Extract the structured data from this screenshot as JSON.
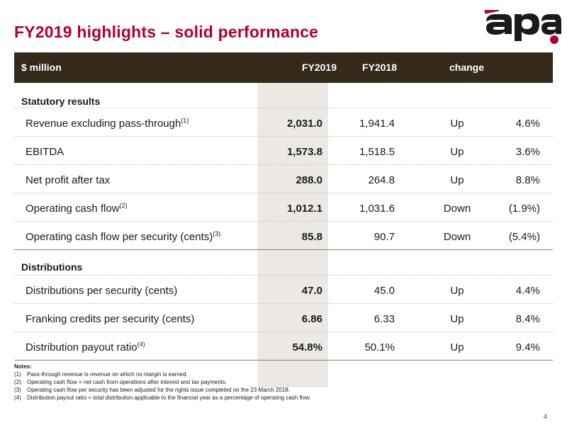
{
  "title": "FY2019 highlights – solid performance",
  "logo_text": "apa",
  "colors": {
    "title": "#b3002d",
    "header_bg": "#352a1a",
    "highlight_column": "#ece9e5"
  },
  "table": {
    "headers": {
      "label": "$ million",
      "fy2019": "FY2019",
      "fy2018": "FY2018",
      "change": "change"
    },
    "sections": [
      {
        "heading": "Statutory results",
        "rows": [
          {
            "label": "Revenue excluding pass-through",
            "note": "(1)",
            "fy2019": "2,031.0",
            "fy2018": "1,941.4",
            "direction": "Up",
            "pct": "4.6%"
          },
          {
            "label": "EBITDA",
            "note": "",
            "fy2019": "1,573.8",
            "fy2018": "1,518.5",
            "direction": "Up",
            "pct": "3.6%"
          },
          {
            "label": "Net profit after tax",
            "note": "",
            "fy2019": "288.0",
            "fy2018": "264.8",
            "direction": "Up",
            "pct": "8.8%"
          },
          {
            "label": "Operating cash flow",
            "note": "(2)",
            "fy2019": "1,012.1",
            "fy2018": "1,031.6",
            "direction": "Down",
            "pct": "(1.9%)"
          },
          {
            "label": "Operating cash flow per security (cents)",
            "note": "(3)",
            "fy2019": "85.8",
            "fy2018": "90.7",
            "direction": "Down",
            "pct": "(5.4%)"
          }
        ]
      },
      {
        "heading": "Distributions",
        "rows": [
          {
            "label": "Distributions per security (cents)",
            "note": "",
            "fy2019": "47.0",
            "fy2018": "45.0",
            "direction": "Up",
            "pct": "4.4%"
          },
          {
            "label": "Franking credits per security (cents)",
            "note": "",
            "fy2019": "6.86",
            "fy2018": "6.33",
            "direction": "Up",
            "pct": "8.4%"
          },
          {
            "label": "Distribution payout ratio",
            "note": "(4)",
            "fy2019": "54.8%",
            "fy2018": "50.1%",
            "direction": "Up",
            "pct": "9.4%"
          }
        ]
      }
    ]
  },
  "notes": {
    "title": "Notes:",
    "items": [
      {
        "num": "(1)",
        "text": "Pass-through revenue is revenue on which no margin is earned."
      },
      {
        "num": "(2)",
        "text": "Operating cash flow = net cash from operations after interest and tax payments."
      },
      {
        "num": "(3)",
        "text": "Operating cash flow per security has been adjusted for the rights issue completed on the 23 March 2018."
      },
      {
        "num": "(4)",
        "text": "Distribution payout ratio = total distribution applicable to the financial year as a percentage of operating cash flow."
      }
    ]
  },
  "page_number": "4"
}
